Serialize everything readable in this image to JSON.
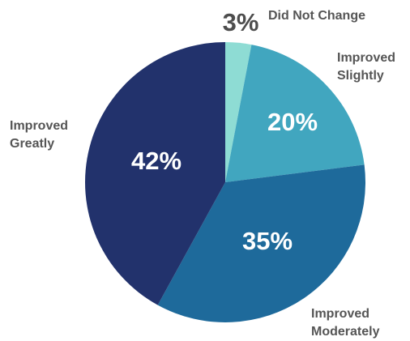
{
  "chart_data": {
    "type": "pie",
    "categories": [
      "Did Not Change",
      "Improved Slightly",
      "Improved Moderately",
      "Improved Greatly"
    ],
    "values": [
      3,
      20,
      35,
      42
    ],
    "value_labels": [
      "3%",
      "20%",
      "35%",
      "42%"
    ],
    "colors": [
      "#8edcd4",
      "#41a6bf",
      "#1e6a9b",
      "#22326c"
    ]
  }
}
